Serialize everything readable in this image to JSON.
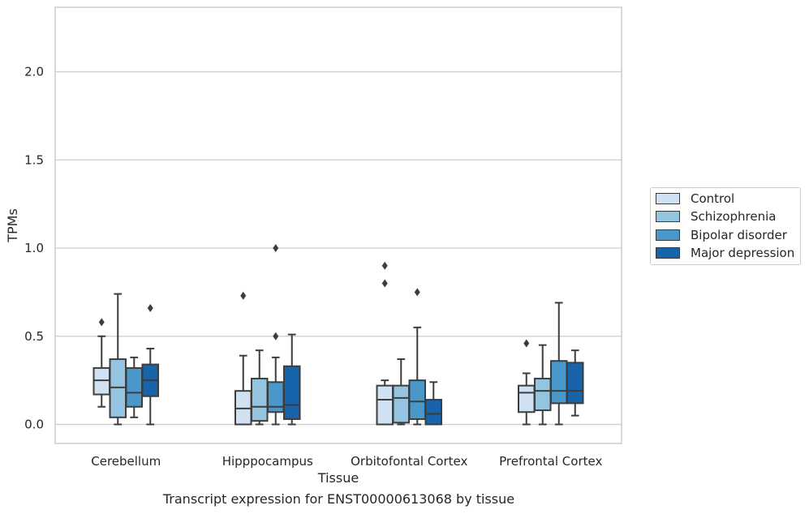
{
  "chart_data": {
    "type": "box",
    "title": "",
    "caption": "Transcript expression for ENST00000613068 by tissue",
    "xlabel": "Tissue",
    "ylabel": "TPMs",
    "ylim": [
      -0.11,
      2.37
    ],
    "yticks": [
      "0.0",
      "0.5",
      "1.0",
      "1.5",
      "2.0"
    ],
    "ytick_values": [
      0.0,
      0.5,
      1.0,
      1.5,
      2.0
    ],
    "grid": "horizontal",
    "legend_position": "right",
    "categories": [
      "Cerebellum",
      "Hipppocampus",
      "Orbitofontal Cortex",
      "Prefrontal Cortex"
    ],
    "series": [
      {
        "name": "Control",
        "color": "#d0e1f2",
        "boxes": [
          {
            "whislo": 0.1,
            "q1": 0.17,
            "med": 0.25,
            "q3": 0.32,
            "whishi": 0.5,
            "fliers": [
              0.58
            ]
          },
          {
            "whislo": 0.0,
            "q1": 0.0,
            "med": 0.09,
            "q3": 0.19,
            "whishi": 0.39,
            "fliers": [
              0.73
            ]
          },
          {
            "whislo": 0.0,
            "q1": 0.0,
            "med": 0.14,
            "q3": 0.22,
            "whishi": 0.25,
            "fliers": [
              0.8,
              0.9
            ]
          },
          {
            "whislo": 0.0,
            "q1": 0.07,
            "med": 0.18,
            "q3": 0.22,
            "whishi": 0.29,
            "fliers": [
              0.46
            ]
          }
        ]
      },
      {
        "name": "Schizophrenia",
        "color": "#94c4df",
        "boxes": [
          {
            "whislo": 0.0,
            "q1": 0.04,
            "med": 0.21,
            "q3": 0.37,
            "whishi": 0.74,
            "fliers": []
          },
          {
            "whislo": 0.0,
            "q1": 0.02,
            "med": 0.1,
            "q3": 0.26,
            "whishi": 0.42,
            "fliers": []
          },
          {
            "whislo": 0.0,
            "q1": 0.01,
            "med": 0.15,
            "q3": 0.22,
            "whishi": 0.37,
            "fliers": []
          },
          {
            "whislo": 0.0,
            "q1": 0.08,
            "med": 0.19,
            "q3": 0.26,
            "whishi": 0.45,
            "fliers": []
          }
        ]
      },
      {
        "name": "Bipolar disorder",
        "color": "#4a98c9",
        "boxes": [
          {
            "whislo": 0.04,
            "q1": 0.1,
            "med": 0.18,
            "q3": 0.32,
            "whishi": 0.38,
            "fliers": []
          },
          {
            "whislo": 0.0,
            "q1": 0.07,
            "med": 0.1,
            "q3": 0.24,
            "whishi": 0.38,
            "fliers": [
              0.5,
              1.0
            ]
          },
          {
            "whislo": 0.0,
            "q1": 0.03,
            "med": 0.13,
            "q3": 0.25,
            "whishi": 0.55,
            "fliers": [
              0.75
            ]
          },
          {
            "whislo": 0.0,
            "q1": 0.12,
            "med": 0.19,
            "q3": 0.36,
            "whishi": 0.69,
            "fliers": []
          }
        ]
      },
      {
        "name": "Major depression",
        "color": "#1764ab",
        "boxes": [
          {
            "whislo": 0.0,
            "q1": 0.16,
            "med": 0.25,
            "q3": 0.34,
            "whishi": 0.43,
            "fliers": [
              0.66
            ]
          },
          {
            "whislo": 0.0,
            "q1": 0.03,
            "med": 0.11,
            "q3": 0.33,
            "whishi": 0.51,
            "fliers": []
          },
          {
            "whislo": 0.0,
            "q1": 0.0,
            "med": 0.06,
            "q3": 0.14,
            "whishi": 0.24,
            "fliers": []
          },
          {
            "whislo": 0.05,
            "q1": 0.12,
            "med": 0.19,
            "q3": 0.35,
            "whishi": 0.42,
            "fliers": []
          }
        ]
      }
    ]
  }
}
